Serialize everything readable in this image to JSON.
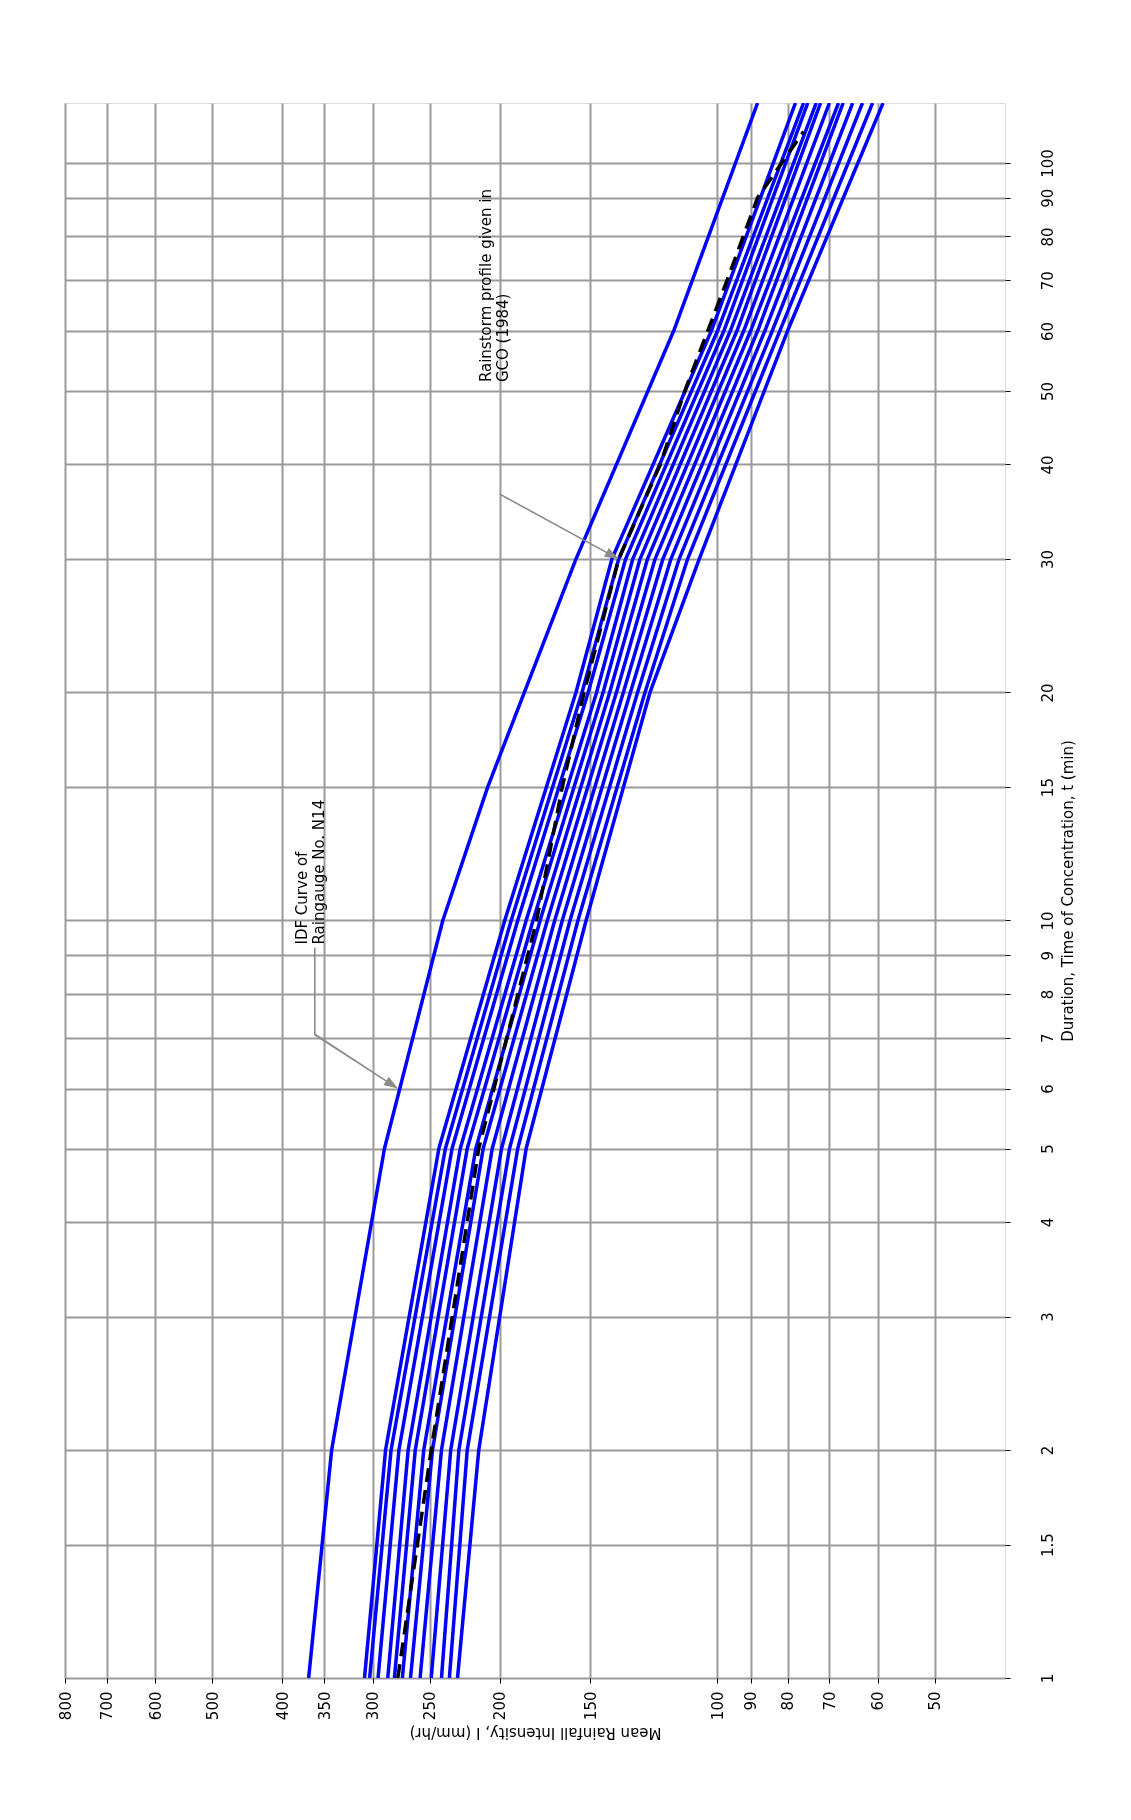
{
  "chart_data": {
    "type": "line",
    "xlabel": "Mean Rainfall Intensity, I (mm/hr)",
    "ylabel": "Duration, Time of Concentration, t (min)",
    "xlim": [
      800,
      40
    ],
    "ylim": [
      1,
      120
    ],
    "log": "xy",
    "xticks": [
      800,
      700,
      600,
      500,
      400,
      350,
      300,
      250,
      200,
      150,
      100,
      90,
      80,
      70,
      60,
      50
    ],
    "yticks": [
      1,
      1.5,
      2,
      3,
      4,
      5,
      6,
      7,
      8,
      9,
      10,
      15,
      20,
      30,
      40,
      50,
      60,
      70,
      80,
      90,
      100
    ],
    "grid": true,
    "legend": false,
    "marker": "none",
    "series": [
      {
        "color": "#0000ff",
        "x": [
          308,
          288,
          243,
          197,
          157,
          140,
          102,
          78
        ],
        "values": [
          1,
          2,
          5,
          10,
          20,
          30,
          60,
          120
        ]
      },
      {
        "color": "#0000ff",
        "x": [
          303,
          283,
          238,
          193,
          154,
          137,
          100,
          76
        ],
        "values": [
          1,
          2,
          5,
          10,
          20,
          30,
          60,
          120
        ]
      },
      {
        "color": "#0000ff",
        "x": [
          295,
          276,
          233,
          189,
          151,
          134,
          98,
          75
        ],
        "values": [
          1,
          2,
          5,
          10,
          20,
          30,
          60,
          120
        ]
      },
      {
        "color": "#0000ff",
        "x": [
          286,
          268,
          227,
          184,
          147,
          131,
          96,
          73
        ],
        "values": [
          1,
          2,
          5,
          10,
          20,
          30,
          60,
          120
        ]
      },
      {
        "color": "#0000ff",
        "x": [
          280,
          262,
          222,
          180,
          144,
          128,
          94,
          72
        ],
        "values": [
          1,
          2,
          5,
          10,
          20,
          30,
          60,
          120
        ]
      },
      {
        "color": "#0000ff",
        "x": [
          273,
          255,
          216,
          176,
          141,
          125,
          92,
          70
        ],
        "values": [
          1,
          2,
          5,
          10,
          20,
          30,
          60,
          120
        ]
      },
      {
        "color": "#0000ff",
        "x": [
          266,
          248,
          211,
          172,
          138,
          122,
          90,
          68
        ],
        "values": [
          1,
          2,
          5,
          10,
          20,
          30,
          60,
          120
        ]
      },
      {
        "color": "#0000ff",
        "x": [
          258,
          241,
          205,
          168,
          135,
          119,
          88,
          67
        ],
        "values": [
          1,
          2,
          5,
          10,
          20,
          30,
          60,
          120
        ]
      },
      {
        "color": "#0000ff",
        "x": [
          249,
          234,
          199,
          164,
          132,
          116,
          86,
          65
        ],
        "values": [
          1,
          2,
          5,
          10,
          20,
          30,
          60,
          120
        ]
      },
      {
        "color": "#0000ff",
        "x": [
          241,
          228,
          194,
          160,
          129,
          113,
          84,
          63
        ],
        "values": [
          1,
          2,
          5,
          10,
          20,
          30,
          60,
          120
        ]
      },
      {
        "color": "#0000ff",
        "x": [
          235,
          222,
          189,
          156,
          126,
          110,
          82,
          61
        ],
        "values": [
          1,
          2,
          5,
          10,
          20,
          30,
          60,
          120
        ]
      },
      {
        "color": "#0000ff",
        "x": [
          229,
          214,
          184,
          152,
          124,
          106,
          80,
          59
        ],
        "values": [
          1,
          2,
          5,
          10,
          20,
          30,
          60,
          120
        ]
      },
      {
        "color": "#0000ff",
        "x": [
          368,
          342,
          289,
          240,
          208,
          157,
          115,
          88
        ],
        "values": [
          1,
          2,
          5,
          10,
          15,
          30,
          60,
          120
        ]
      },
      {
        "color": "#000000",
        "line_style": "dashed",
        "x": [
          277,
          249,
          214,
          178,
          164,
          153,
          137,
          120,
          111,
          97,
          88,
          76
        ],
        "values": [
          1,
          2,
          5,
          10,
          15,
          20,
          30,
          40,
          50,
          70,
          90,
          110
        ]
      }
    ],
    "annotations": [
      "IDF Curve of\nRaingauge No. N14",
      "Rainstorm profile given in\nGCO (1984)"
    ]
  }
}
